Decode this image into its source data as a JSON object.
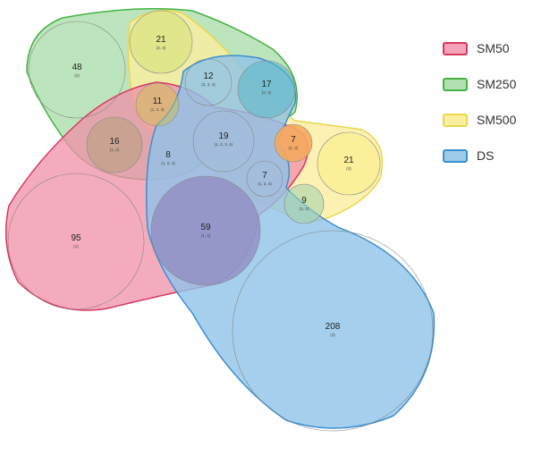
{
  "legend": [
    {
      "label": "SM50",
      "fill": "#f4a3b8",
      "stroke": "#d9385f"
    },
    {
      "label": "SM250",
      "fill": "#b2e0b2",
      "stroke": "#45b245"
    },
    {
      "label": "SM500",
      "fill": "#fbeea0",
      "stroke": "#e8d84a"
    },
    {
      "label": "DS",
      "fill": "#9ecbea",
      "stroke": "#3c8fcf"
    }
  ],
  "regions": [
    {
      "count": "48",
      "sets": "(2)"
    },
    {
      "count": "21",
      "sets": "(2, 3)"
    },
    {
      "count": "12",
      "sets": "(2, 3, 4)"
    },
    {
      "count": "17",
      "sets": "(2, 4)"
    },
    {
      "count": "11",
      "sets": "(1, 2, 3)"
    },
    {
      "count": "16",
      "sets": "(1, 2)"
    },
    {
      "count": "19",
      "sets": "(1, 2, 3, 4)"
    },
    {
      "count": "8",
      "sets": "(1, 2, 4)"
    },
    {
      "count": "7",
      "sets": "(1, 3)"
    },
    {
      "count": "21",
      "sets": "(3)"
    },
    {
      "count": "7",
      "sets": "(1, 3, 4)"
    },
    {
      "count": "9",
      "sets": "(3, 4)"
    },
    {
      "count": "95",
      "sets": "(1)"
    },
    {
      "count": "59",
      "sets": "(1, 4)"
    },
    {
      "count": "208",
      "sets": "(4)"
    }
  ]
}
